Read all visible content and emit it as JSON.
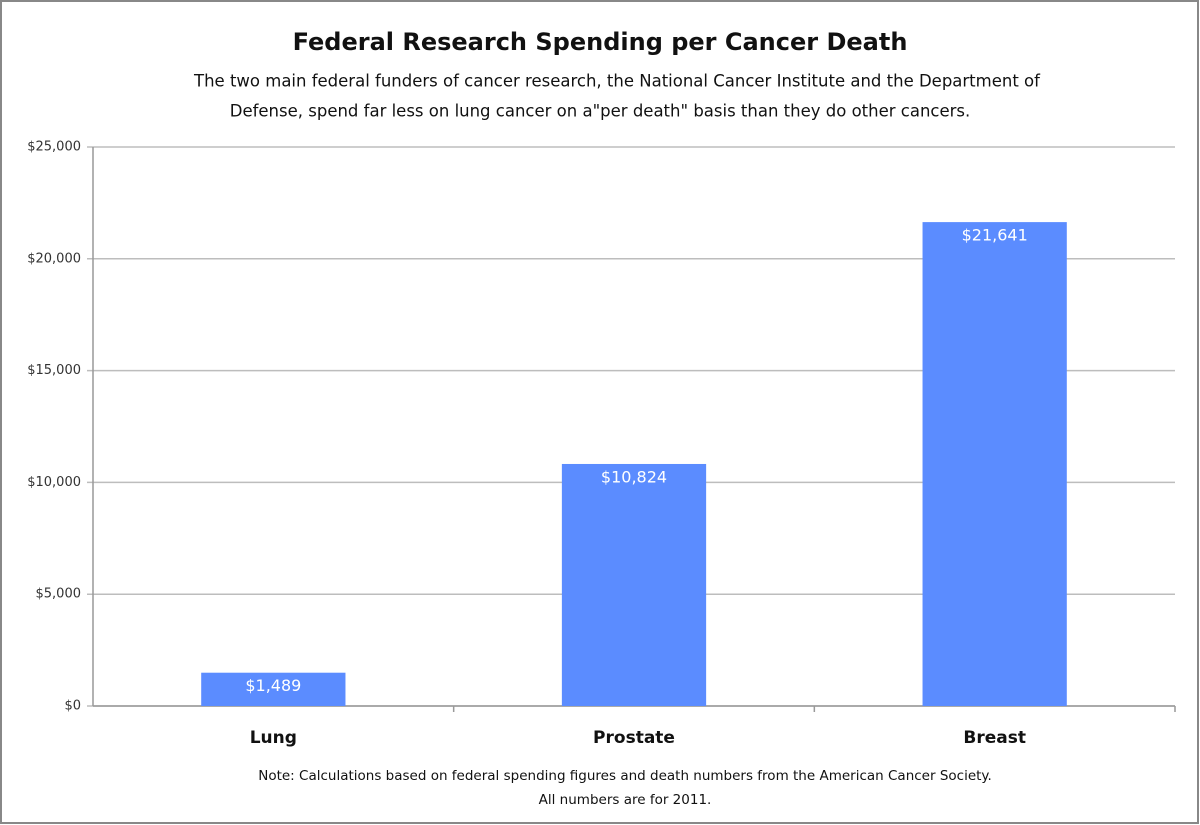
{
  "chart_data": {
    "type": "bar",
    "title": "Federal Research Spending per Cancer Death",
    "subtitle": [
      "The two main federal funders of cancer research, the National Cancer Institute and the Department of",
      "Defense, spend far less on lung cancer on a\"per death\" basis than they do other cancers."
    ],
    "note": [
      "Note: Calculations based on federal spending figures and death numbers from the American Cancer Society.",
      "All numbers are for 2011."
    ],
    "categories": [
      "Lung",
      "Prostate",
      "Breast"
    ],
    "values": [
      1489,
      10824,
      21641
    ],
    "value_labels": [
      "$1,489",
      "$10,824",
      "$21,641"
    ],
    "color": "#5b8cff",
    "ylim": [
      0,
      25000
    ],
    "yticks": [
      {
        "value": 0,
        "label": "$0"
      },
      {
        "value": 5000,
        "label": "$5,000"
      },
      {
        "value": 10000,
        "label": "$10,000"
      },
      {
        "value": 15000,
        "label": "$15,000"
      },
      {
        "value": 20000,
        "label": "$20,000"
      },
      {
        "value": 25000,
        "label": "$25,000"
      }
    ],
    "grid": true
  }
}
